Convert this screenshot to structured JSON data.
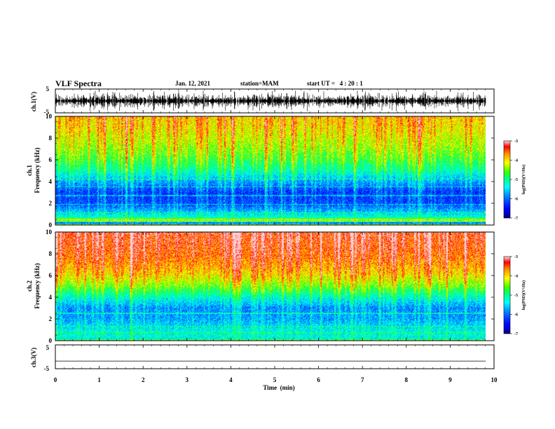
{
  "chart_data": {
    "type": "heatmap",
    "title": "VLF Spectra",
    "date": "Jan. 12, 2021",
    "station": "station=MAM",
    "start_ut": "start UT =   4 : 20 : 1",
    "xlabel": "Time  (min)",
    "xlim": [
      0,
      10
    ],
    "xticks": [
      "0",
      "1",
      "2",
      "3",
      "4",
      "5",
      "6",
      "7",
      "8",
      "9",
      "10"
    ],
    "panels": [
      {
        "kind": "waveform",
        "ylabel": "ch.1(V)",
        "ylim": [
          -5,
          5
        ],
        "yticks": [
          "5",
          "-5"
        ],
        "envelope": [
          -3.5,
          3.5
        ],
        "color": "#000000"
      },
      {
        "kind": "spectrogram",
        "ylabel_top": "ch.1",
        "ylabel": "Frequency  (kHz)",
        "ylim": [
          0,
          10
        ],
        "yticks": [
          "0",
          "2",
          "4",
          "6",
          "8",
          "10"
        ],
        "profile": [
          {
            "f": 0.0,
            "v": -4.3
          },
          {
            "f": 0.15,
            "v": -6.4
          },
          {
            "f": 0.35,
            "v": -4.2
          },
          {
            "f": 0.6,
            "v": -5.1
          },
          {
            "f": 1.0,
            "v": -5.5
          },
          {
            "f": 1.5,
            "v": -5.9
          },
          {
            "f": 2.0,
            "v": -6.2
          },
          {
            "f": 3.0,
            "v": -6.3
          },
          {
            "f": 4.0,
            "v": -5.8
          },
          {
            "f": 5.0,
            "v": -5.2
          },
          {
            "f": 6.0,
            "v": -4.8
          },
          {
            "f": 7.0,
            "v": -4.5
          },
          {
            "f": 8.0,
            "v": -4.3
          },
          {
            "f": 9.0,
            "v": -4.1
          },
          {
            "f": 10.0,
            "v": -4.0
          }
        ],
        "lines_khz": [
          0.5,
          1.1,
          1.9,
          2.7,
          3.5,
          4.2
        ],
        "colorbar": {
          "label": "log(PSD)(V²/Hz)",
          "ticks": [
            "-3",
            "-4",
            "-5",
            "-6",
            "-7"
          ],
          "range": [
            -7,
            -3
          ]
        }
      },
      {
        "kind": "spectrogram",
        "ylabel_top": "ch.2",
        "ylabel": "Frequency  (kHz)",
        "ylim": [
          0,
          10
        ],
        "yticks": [
          "0",
          "2",
          "4",
          "6",
          "8",
          "10"
        ],
        "profile": [
          {
            "f": 0.0,
            "v": -4.5
          },
          {
            "f": 0.15,
            "v": -5.4
          },
          {
            "f": 0.5,
            "v": -5.3
          },
          {
            "f": 1.0,
            "v": -5.4
          },
          {
            "f": 1.5,
            "v": -5.6
          },
          {
            "f": 2.0,
            "v": -5.8
          },
          {
            "f": 3.0,
            "v": -5.9
          },
          {
            "f": 4.0,
            "v": -5.3
          },
          {
            "f": 5.0,
            "v": -4.6
          },
          {
            "f": 6.0,
            "v": -4.1
          },
          {
            "f": 7.0,
            "v": -3.8
          },
          {
            "f": 8.0,
            "v": -3.6
          },
          {
            "f": 9.0,
            "v": -3.5
          },
          {
            "f": 10.0,
            "v": -3.4
          }
        ],
        "lines_khz": [
          0.7,
          1.3,
          2.5
        ],
        "colorbar": {
          "label": "log(PSD)(V²/Hz)",
          "ticks": [
            "-3",
            "-4",
            "-5",
            "-6",
            "-7"
          ],
          "range": [
            -7,
            -3
          ]
        }
      },
      {
        "kind": "waveform",
        "ylabel": "ch.3(V)",
        "ylim": [
          -5,
          5
        ],
        "yticks": [
          "5",
          "-5"
        ],
        "envelope": [
          -1.8,
          -1.8
        ],
        "color": "#000000"
      }
    ]
  }
}
